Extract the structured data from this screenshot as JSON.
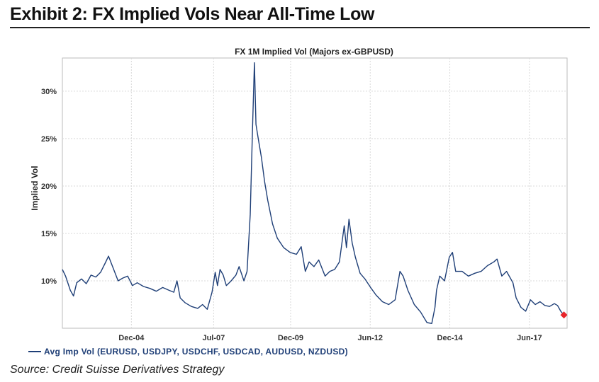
{
  "exhibit": {
    "title": "Exhibit 2: FX Implied Vols Near All-Time Low"
  },
  "source": "Source: Credit Suisse Derivatives Strategy",
  "colors": {
    "line": "#1f3f77",
    "marker": "#e8242a",
    "grid": "#d9d9d9",
    "frame": "#bbbbbb"
  },
  "chart_data": {
    "type": "line",
    "title": "FX 1M Implied Vol (Majors ex-GBPUSD)",
    "ylabel": "Implied Vol",
    "xlabel": "",
    "xlim": [
      2002.75,
      2018.6
    ],
    "ylim": [
      5,
      33.5
    ],
    "yticks": [
      10,
      15,
      20,
      25,
      30
    ],
    "ytick_labels": [
      "10%",
      "15%",
      "20%",
      "25%",
      "30%"
    ],
    "xticks": [
      2004.917,
      2007.5,
      2009.917,
      2012.417,
      2014.917,
      2017.417
    ],
    "xtick_labels": [
      "Dec-04",
      "Jul-07",
      "Dec-09",
      "Jun-12",
      "Dec-14",
      "Jun-17"
    ],
    "grid": true,
    "legend_position": "bottom-left",
    "series": [
      {
        "name": "Avg Imp Vol (EURUSD, USDJPY, USDCHF, USDCAD, AUDUSD, NZDUSD)",
        "x": [
          2002.75,
          2002.85,
          2003.0,
          2003.1,
          2003.2,
          2003.35,
          2003.5,
          2003.65,
          2003.8,
          2003.95,
          2004.1,
          2004.2,
          2004.35,
          2004.5,
          2004.65,
          2004.8,
          2004.95,
          2005.1,
          2005.3,
          2005.5,
          2005.7,
          2005.9,
          2006.1,
          2006.25,
          2006.35,
          2006.45,
          2006.6,
          2006.8,
          2007.0,
          2007.15,
          2007.3,
          2007.45,
          2007.55,
          2007.62,
          2007.7,
          2007.8,
          2007.9,
          2008.05,
          2008.2,
          2008.3,
          2008.45,
          2008.55,
          2008.65,
          2008.72,
          2008.78,
          2008.83,
          2008.9,
          2009.0,
          2009.1,
          2009.2,
          2009.35,
          2009.5,
          2009.7,
          2009.9,
          2010.1,
          2010.25,
          2010.38,
          2010.5,
          2010.65,
          2010.8,
          2011.0,
          2011.15,
          2011.3,
          2011.45,
          2011.6,
          2011.67,
          2011.75,
          2011.85,
          2011.95,
          2012.1,
          2012.25,
          2012.45,
          2012.6,
          2012.8,
          2013.0,
          2013.2,
          2013.35,
          2013.45,
          2013.6,
          2013.8,
          2014.0,
          2014.2,
          2014.35,
          2014.45,
          2014.5,
          2014.6,
          2014.75,
          2014.9,
          2015.0,
          2015.1,
          2015.3,
          2015.5,
          2015.7,
          2015.9,
          2016.1,
          2016.3,
          2016.4,
          2016.55,
          2016.7,
          2016.9,
          2017.0,
          2017.15,
          2017.3,
          2017.45,
          2017.6,
          2017.75,
          2017.9,
          2018.05,
          2018.2,
          2018.3,
          2018.4,
          2018.5
        ],
        "values": [
          11.2,
          10.5,
          9.0,
          8.4,
          9.8,
          10.2,
          9.7,
          10.6,
          10.4,
          10.9,
          11.9,
          12.6,
          11.3,
          10.0,
          10.3,
          10.5,
          9.5,
          9.8,
          9.4,
          9.2,
          8.9,
          9.3,
          9.0,
          8.8,
          10.0,
          8.2,
          7.7,
          7.3,
          7.1,
          7.5,
          7.0,
          8.8,
          10.9,
          9.5,
          11.2,
          10.6,
          9.5,
          10.0,
          10.6,
          11.5,
          10.0,
          11.0,
          17.0,
          26.0,
          33.0,
          26.5,
          25.0,
          23.0,
          20.5,
          18.5,
          16.0,
          14.5,
          13.5,
          13.0,
          12.8,
          13.6,
          11.0,
          12.0,
          11.5,
          12.2,
          10.5,
          11.0,
          11.2,
          12.0,
          15.8,
          13.5,
          16.5,
          14.0,
          12.5,
          10.8,
          10.2,
          9.2,
          8.5,
          7.8,
          7.5,
          8.0,
          11.0,
          10.5,
          9.0,
          7.5,
          6.7,
          5.6,
          5.5,
          7.2,
          9.0,
          10.5,
          10.0,
          12.5,
          13.0,
          11.0,
          11.0,
          10.5,
          10.8,
          11.0,
          11.6,
          12.0,
          12.3,
          10.5,
          11.0,
          9.8,
          8.2,
          7.2,
          6.8,
          8.0,
          7.5,
          7.8,
          7.4,
          7.3,
          7.6,
          7.4,
          6.8,
          6.4
        ]
      }
    ],
    "marker": {
      "x": 2018.5,
      "value": 6.4
    }
  }
}
